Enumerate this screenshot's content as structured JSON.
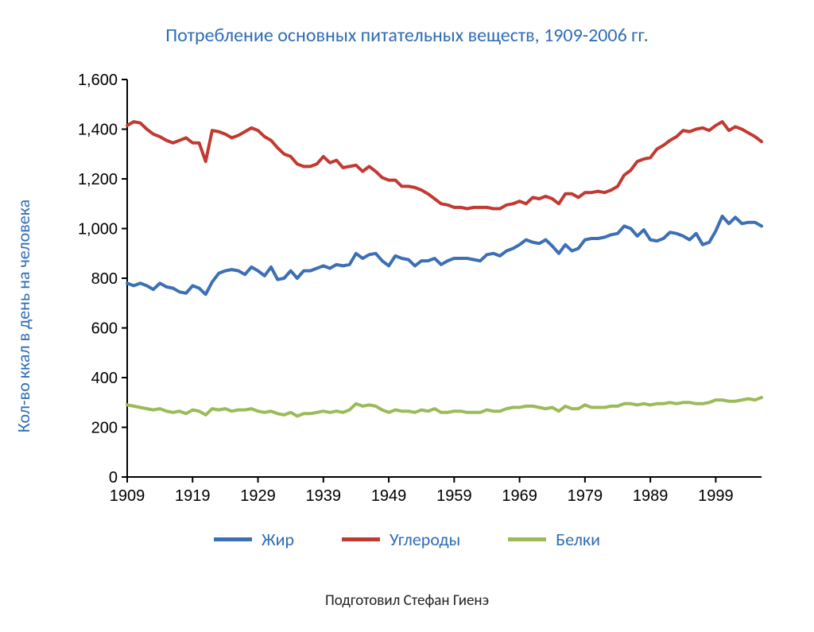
{
  "title": {
    "text": "Потребление основных питательных веществ, 1909-2006 гг.",
    "color": "#2f6db5",
    "fontsize": 24
  },
  "credit": {
    "text": "Подготовил Стефан Гиенэ",
    "color": "#222222",
    "fontsize": 19
  },
  "ylabel": {
    "text": "Кол-во ккал в день на человека",
    "color": "#2f6db5",
    "fontsize": 22
  },
  "chart": {
    "type": "line",
    "background_color": "#ffffff",
    "axis_color": "#000000",
    "axis_width": 2,
    "tick_font_size": 20,
    "tick_font_color": "#000000",
    "x": {
      "min": 1909,
      "max": 2006,
      "ticks": [
        1909,
        1919,
        1929,
        1939,
        1949,
        1959,
        1969,
        1979,
        1989,
        1999
      ],
      "tick_labels": [
        "1909",
        "1919",
        "1929",
        "1939",
        "1949",
        "1959",
        "1969",
        "1979",
        "1989",
        "1999"
      ]
    },
    "y": {
      "min": 0,
      "max": 1600,
      "ticks": [
        0,
        200,
        400,
        600,
        800,
        1000,
        1200,
        1400,
        1600
      ],
      "tick_labels": [
        "0",
        "200",
        "400",
        "600",
        "800",
        "1,000",
        "1,200",
        "1,400",
        "1,600"
      ]
    },
    "series": [
      {
        "id": "fat",
        "label": "Жир",
        "color": "#3c6fb4",
        "line_width": 4,
        "x": [
          1909,
          1910,
          1911,
          1912,
          1913,
          1914,
          1915,
          1916,
          1917,
          1918,
          1919,
          1920,
          1921,
          1922,
          1923,
          1924,
          1925,
          1926,
          1927,
          1928,
          1929,
          1930,
          1931,
          1932,
          1933,
          1934,
          1935,
          1936,
          1937,
          1938,
          1939,
          1940,
          1941,
          1942,
          1943,
          1944,
          1945,
          1946,
          1947,
          1948,
          1949,
          1950,
          1951,
          1952,
          1953,
          1954,
          1955,
          1956,
          1957,
          1958,
          1959,
          1960,
          1961,
          1962,
          1963,
          1964,
          1965,
          1966,
          1967,
          1968,
          1969,
          1970,
          1971,
          1972,
          1973,
          1974,
          1975,
          1976,
          1977,
          1978,
          1979,
          1980,
          1981,
          1982,
          1983,
          1984,
          1985,
          1986,
          1987,
          1988,
          1989,
          1990,
          1991,
          1992,
          1993,
          1994,
          1995,
          1996,
          1997,
          1998,
          1999,
          2000,
          2001,
          2002,
          2003,
          2004,
          2005,
          2006
        ],
        "y": [
          780,
          770,
          780,
          770,
          755,
          780,
          765,
          760,
          745,
          740,
          770,
          760,
          735,
          785,
          820,
          830,
          835,
          830,
          815,
          845,
          830,
          810,
          845,
          795,
          800,
          830,
          800,
          830,
          830,
          840,
          850,
          840,
          855,
          850,
          855,
          900,
          880,
          895,
          900,
          870,
          850,
          890,
          880,
          875,
          850,
          870,
          870,
          880,
          855,
          870,
          880,
          880,
          880,
          875,
          870,
          895,
          900,
          890,
          910,
          920,
          935,
          955,
          945,
          940,
          955,
          930,
          900,
          935,
          910,
          920,
          955,
          960,
          960,
          965,
          975,
          980,
          1010,
          1000,
          970,
          995,
          955,
          950,
          960,
          985,
          980,
          970,
          955,
          980,
          935,
          945,
          990,
          1050,
          1020,
          1045,
          1020,
          1025,
          1025,
          1010
        ]
      },
      {
        "id": "carb",
        "label": "Углероды",
        "color": "#c13a32",
        "line_width": 4,
        "x": [
          1909,
          1910,
          1911,
          1912,
          1913,
          1914,
          1915,
          1916,
          1917,
          1918,
          1919,
          1920,
          1921,
          1922,
          1923,
          1924,
          1925,
          1926,
          1927,
          1928,
          1929,
          1930,
          1931,
          1932,
          1933,
          1934,
          1935,
          1936,
          1937,
          1938,
          1939,
          1940,
          1941,
          1942,
          1943,
          1944,
          1945,
          1946,
          1947,
          1948,
          1949,
          1950,
          1951,
          1952,
          1953,
          1954,
          1955,
          1956,
          1957,
          1958,
          1959,
          1960,
          1961,
          1962,
          1963,
          1964,
          1965,
          1966,
          1967,
          1968,
          1969,
          1970,
          1971,
          1972,
          1973,
          1974,
          1975,
          1976,
          1977,
          1978,
          1979,
          1980,
          1981,
          1982,
          1983,
          1984,
          1985,
          1986,
          1987,
          1988,
          1989,
          1990,
          1991,
          1992,
          1993,
          1994,
          1995,
          1996,
          1997,
          1998,
          1999,
          2000,
          2001,
          2002,
          2003,
          2004,
          2005,
          2006
        ],
        "y": [
          1415,
          1430,
          1425,
          1400,
          1380,
          1370,
          1355,
          1345,
          1355,
          1365,
          1345,
          1345,
          1270,
          1395,
          1390,
          1380,
          1365,
          1375,
          1390,
          1405,
          1395,
          1370,
          1355,
          1325,
          1300,
          1290,
          1260,
          1250,
          1250,
          1260,
          1290,
          1265,
          1275,
          1245,
          1250,
          1255,
          1230,
          1250,
          1230,
          1205,
          1195,
          1195,
          1170,
          1170,
          1165,
          1155,
          1140,
          1120,
          1100,
          1095,
          1085,
          1085,
          1080,
          1085,
          1085,
          1085,
          1080,
          1080,
          1095,
          1100,
          1110,
          1100,
          1125,
          1120,
          1130,
          1120,
          1100,
          1140,
          1140,
          1125,
          1145,
          1145,
          1150,
          1145,
          1155,
          1170,
          1215,
          1235,
          1270,
          1280,
          1285,
          1320,
          1335,
          1355,
          1370,
          1395,
          1390,
          1400,
          1405,
          1395,
          1415,
          1430,
          1395,
          1410,
          1400,
          1385,
          1370,
          1350
        ]
      },
      {
        "id": "protein",
        "label": "Белки",
        "color": "#9bbb59",
        "line_width": 4,
        "x": [
          1909,
          1910,
          1911,
          1912,
          1913,
          1914,
          1915,
          1916,
          1917,
          1918,
          1919,
          1920,
          1921,
          1922,
          1923,
          1924,
          1925,
          1926,
          1927,
          1928,
          1929,
          1930,
          1931,
          1932,
          1933,
          1934,
          1935,
          1936,
          1937,
          1938,
          1939,
          1940,
          1941,
          1942,
          1943,
          1944,
          1945,
          1946,
          1947,
          1948,
          1949,
          1950,
          1951,
          1952,
          1953,
          1954,
          1955,
          1956,
          1957,
          1958,
          1959,
          1960,
          1961,
          1962,
          1963,
          1964,
          1965,
          1966,
          1967,
          1968,
          1969,
          1970,
          1971,
          1972,
          1973,
          1974,
          1975,
          1976,
          1977,
          1978,
          1979,
          1980,
          1981,
          1982,
          1983,
          1984,
          1985,
          1986,
          1987,
          1988,
          1989,
          1990,
          1991,
          1992,
          1993,
          1994,
          1995,
          1996,
          1997,
          1998,
          1999,
          2000,
          2001,
          2002,
          2003,
          2004,
          2005,
          2006
        ],
        "y": [
          290,
          285,
          280,
          275,
          270,
          275,
          265,
          260,
          265,
          255,
          270,
          265,
          250,
          275,
          270,
          275,
          265,
          270,
          270,
          275,
          265,
          260,
          265,
          255,
          250,
          260,
          245,
          255,
          255,
          260,
          265,
          260,
          265,
          260,
          270,
          295,
          285,
          290,
          285,
          270,
          260,
          270,
          265,
          265,
          260,
          270,
          265,
          275,
          260,
          260,
          265,
          265,
          260,
          260,
          260,
          270,
          265,
          265,
          275,
          280,
          280,
          285,
          285,
          280,
          275,
          280,
          265,
          285,
          275,
          275,
          290,
          280,
          280,
          280,
          285,
          285,
          295,
          295,
          290,
          295,
          290,
          295,
          295,
          300,
          295,
          300,
          300,
          295,
          295,
          300,
          310,
          310,
          305,
          305,
          310,
          315,
          310,
          320
        ]
      }
    ]
  },
  "legend": {
    "fontsize": 22,
    "label_color": "#2f6db5",
    "line_width": 5,
    "items": [
      {
        "series": "fat",
        "label": "Жир"
      },
      {
        "series": "carb",
        "label": "Углероды"
      },
      {
        "series": "protein",
        "label": "Белки"
      }
    ]
  }
}
